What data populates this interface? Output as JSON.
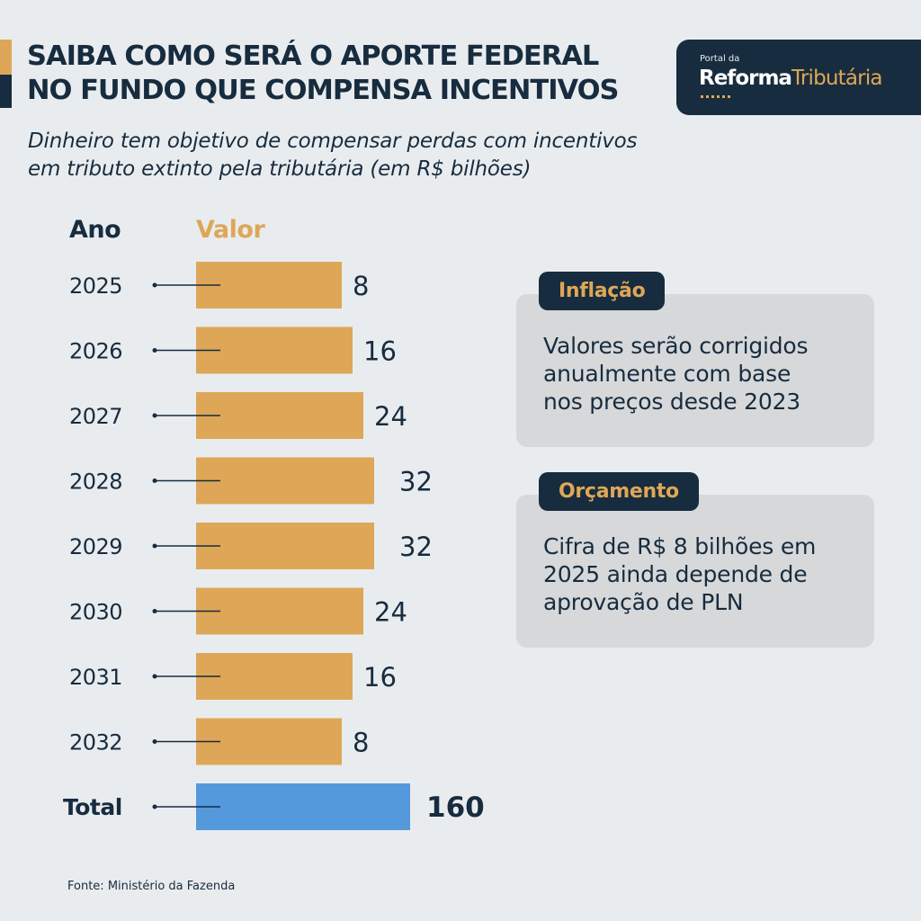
{
  "title_lines": [
    "SAIBA COMO SERÁ O APORTE FEDERAL",
    "NO FUNDO QUE COMPENSA INCENTIVOS"
  ],
  "subtitle_lines": [
    "Dinheiro tem objetivo de compensar perdas com incentivos",
    "em tributo extinto pela tributária (em R$ bilhões)"
  ],
  "logo": {
    "small": "Portal da",
    "bold": "Reforma",
    "light": "Tributária"
  },
  "colors": {
    "navy": "#172c3e",
    "gold": "#dea757",
    "blue": "#5599dd",
    "background": "#e9ecef",
    "note_bg": "#d7d8da"
  },
  "notes": [
    {
      "tag": "Inflação",
      "lines": [
        "Valores serão corrigidos",
        "anualmente com base",
        "nos preços desde 2023"
      ]
    },
    {
      "tag": "Orçamento",
      "lines": [
        "Cifra de R$ 8 bilhões em",
        "2025 ainda depende de",
        "aprovação de PLN"
      ]
    }
  ],
  "source": "Fonte: Ministério da Fazenda",
  "chart_data": {
    "type": "bar",
    "orientation": "horizontal",
    "title": "SAIBA COMO SERÁ O APORTE FEDERAL NO FUNDO QUE COMPENSA INCENTIVOS",
    "xlabel": "Valor",
    "ylabel": "Ano",
    "unit": "R$ bilhões",
    "categories": [
      "2025",
      "2026",
      "2027",
      "2028",
      "2029",
      "2030",
      "2031",
      "2032"
    ],
    "values": [
      8,
      16,
      24,
      32,
      32,
      24,
      16,
      8
    ],
    "total": {
      "label": "Total",
      "value": 160
    },
    "grid": false,
    "legend": "none"
  }
}
